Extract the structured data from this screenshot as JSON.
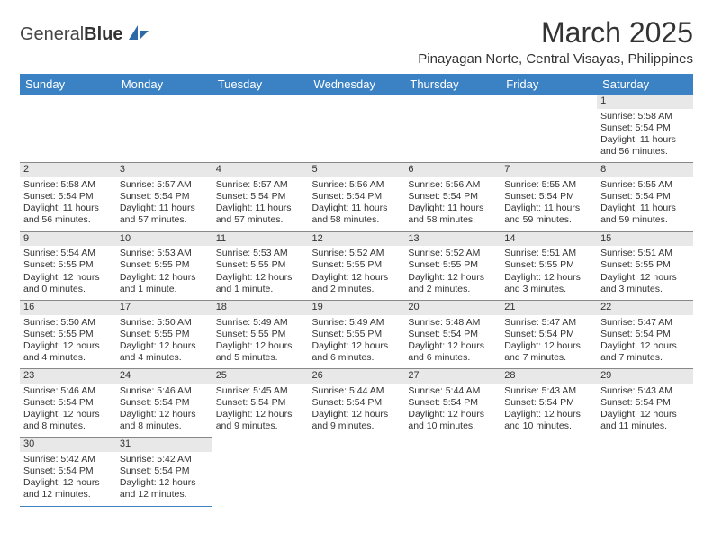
{
  "logo": {
    "text1": "General",
    "text2": "Blue"
  },
  "title": "March 2025",
  "subtitle": "Pinayagan Norte, Central Visayas, Philippines",
  "headerColor": "#3b82c4",
  "dayHeaders": [
    "Sunday",
    "Monday",
    "Tuesday",
    "Wednesday",
    "Thursday",
    "Friday",
    "Saturday"
  ],
  "weeks": [
    [
      null,
      null,
      null,
      null,
      null,
      null,
      {
        "n": "1",
        "sr": "Sunrise: 5:58 AM",
        "ss": "Sunset: 5:54 PM",
        "dl": "Daylight: 11 hours and 56 minutes."
      }
    ],
    [
      {
        "n": "2",
        "sr": "Sunrise: 5:58 AM",
        "ss": "Sunset: 5:54 PM",
        "dl": "Daylight: 11 hours and 56 minutes."
      },
      {
        "n": "3",
        "sr": "Sunrise: 5:57 AM",
        "ss": "Sunset: 5:54 PM",
        "dl": "Daylight: 11 hours and 57 minutes."
      },
      {
        "n": "4",
        "sr": "Sunrise: 5:57 AM",
        "ss": "Sunset: 5:54 PM",
        "dl": "Daylight: 11 hours and 57 minutes."
      },
      {
        "n": "5",
        "sr": "Sunrise: 5:56 AM",
        "ss": "Sunset: 5:54 PM",
        "dl": "Daylight: 11 hours and 58 minutes."
      },
      {
        "n": "6",
        "sr": "Sunrise: 5:56 AM",
        "ss": "Sunset: 5:54 PM",
        "dl": "Daylight: 11 hours and 58 minutes."
      },
      {
        "n": "7",
        "sr": "Sunrise: 5:55 AM",
        "ss": "Sunset: 5:54 PM",
        "dl": "Daylight: 11 hours and 59 minutes."
      },
      {
        "n": "8",
        "sr": "Sunrise: 5:55 AM",
        "ss": "Sunset: 5:54 PM",
        "dl": "Daylight: 11 hours and 59 minutes."
      }
    ],
    [
      {
        "n": "9",
        "sr": "Sunrise: 5:54 AM",
        "ss": "Sunset: 5:55 PM",
        "dl": "Daylight: 12 hours and 0 minutes."
      },
      {
        "n": "10",
        "sr": "Sunrise: 5:53 AM",
        "ss": "Sunset: 5:55 PM",
        "dl": "Daylight: 12 hours and 1 minute."
      },
      {
        "n": "11",
        "sr": "Sunrise: 5:53 AM",
        "ss": "Sunset: 5:55 PM",
        "dl": "Daylight: 12 hours and 1 minute."
      },
      {
        "n": "12",
        "sr": "Sunrise: 5:52 AM",
        "ss": "Sunset: 5:55 PM",
        "dl": "Daylight: 12 hours and 2 minutes."
      },
      {
        "n": "13",
        "sr": "Sunrise: 5:52 AM",
        "ss": "Sunset: 5:55 PM",
        "dl": "Daylight: 12 hours and 2 minutes."
      },
      {
        "n": "14",
        "sr": "Sunrise: 5:51 AM",
        "ss": "Sunset: 5:55 PM",
        "dl": "Daylight: 12 hours and 3 minutes."
      },
      {
        "n": "15",
        "sr": "Sunrise: 5:51 AM",
        "ss": "Sunset: 5:55 PM",
        "dl": "Daylight: 12 hours and 3 minutes."
      }
    ],
    [
      {
        "n": "16",
        "sr": "Sunrise: 5:50 AM",
        "ss": "Sunset: 5:55 PM",
        "dl": "Daylight: 12 hours and 4 minutes."
      },
      {
        "n": "17",
        "sr": "Sunrise: 5:50 AM",
        "ss": "Sunset: 5:55 PM",
        "dl": "Daylight: 12 hours and 4 minutes."
      },
      {
        "n": "18",
        "sr": "Sunrise: 5:49 AM",
        "ss": "Sunset: 5:55 PM",
        "dl": "Daylight: 12 hours and 5 minutes."
      },
      {
        "n": "19",
        "sr": "Sunrise: 5:49 AM",
        "ss": "Sunset: 5:55 PM",
        "dl": "Daylight: 12 hours and 6 minutes."
      },
      {
        "n": "20",
        "sr": "Sunrise: 5:48 AM",
        "ss": "Sunset: 5:54 PM",
        "dl": "Daylight: 12 hours and 6 minutes."
      },
      {
        "n": "21",
        "sr": "Sunrise: 5:47 AM",
        "ss": "Sunset: 5:54 PM",
        "dl": "Daylight: 12 hours and 7 minutes."
      },
      {
        "n": "22",
        "sr": "Sunrise: 5:47 AM",
        "ss": "Sunset: 5:54 PM",
        "dl": "Daylight: 12 hours and 7 minutes."
      }
    ],
    [
      {
        "n": "23",
        "sr": "Sunrise: 5:46 AM",
        "ss": "Sunset: 5:54 PM",
        "dl": "Daylight: 12 hours and 8 minutes."
      },
      {
        "n": "24",
        "sr": "Sunrise: 5:46 AM",
        "ss": "Sunset: 5:54 PM",
        "dl": "Daylight: 12 hours and 8 minutes."
      },
      {
        "n": "25",
        "sr": "Sunrise: 5:45 AM",
        "ss": "Sunset: 5:54 PM",
        "dl": "Daylight: 12 hours and 9 minutes."
      },
      {
        "n": "26",
        "sr": "Sunrise: 5:44 AM",
        "ss": "Sunset: 5:54 PM",
        "dl": "Daylight: 12 hours and 9 minutes."
      },
      {
        "n": "27",
        "sr": "Sunrise: 5:44 AM",
        "ss": "Sunset: 5:54 PM",
        "dl": "Daylight: 12 hours and 10 minutes."
      },
      {
        "n": "28",
        "sr": "Sunrise: 5:43 AM",
        "ss": "Sunset: 5:54 PM",
        "dl": "Daylight: 12 hours and 10 minutes."
      },
      {
        "n": "29",
        "sr": "Sunrise: 5:43 AM",
        "ss": "Sunset: 5:54 PM",
        "dl": "Daylight: 12 hours and 11 minutes."
      }
    ],
    [
      {
        "n": "30",
        "sr": "Sunrise: 5:42 AM",
        "ss": "Sunset: 5:54 PM",
        "dl": "Daylight: 12 hours and 12 minutes."
      },
      {
        "n": "31",
        "sr": "Sunrise: 5:42 AM",
        "ss": "Sunset: 5:54 PM",
        "dl": "Daylight: 12 hours and 12 minutes."
      },
      null,
      null,
      null,
      null,
      null
    ]
  ]
}
